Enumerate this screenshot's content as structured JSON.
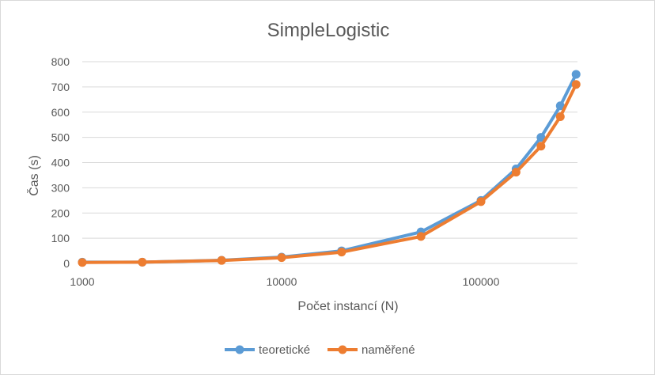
{
  "chart_data": {
    "type": "line",
    "title": "SimpleLogistic",
    "xlabel": "Počet instancí (N)",
    "ylabel": "Čas (s)",
    "x_scale": "log",
    "xlim": [
      1000,
      300000
    ],
    "ylim": [
      0,
      800
    ],
    "y_ticks": [
      0,
      100,
      200,
      300,
      400,
      500,
      600,
      700,
      800
    ],
    "x_ticks": [
      1000,
      10000,
      100000
    ],
    "x_tick_labels": [
      "1000",
      "10000",
      "100000"
    ],
    "grid": "horizontal",
    "legend": "bottom",
    "x": [
      1000,
      2000,
      5000,
      10000,
      20000,
      50000,
      100000,
      150000,
      200000,
      250000,
      300000
    ],
    "series": [
      {
        "name": "teoretické",
        "color": "#5b9bd5",
        "values": [
          5,
          5,
          12.5,
          25,
          50,
          125,
          250,
          375,
          500,
          625,
          750
        ]
      },
      {
        "name": "naměřené",
        "color": "#ed7d31",
        "values": [
          4,
          5,
          12,
          23,
          45,
          107,
          245,
          362,
          465,
          582,
          710
        ]
      }
    ]
  }
}
